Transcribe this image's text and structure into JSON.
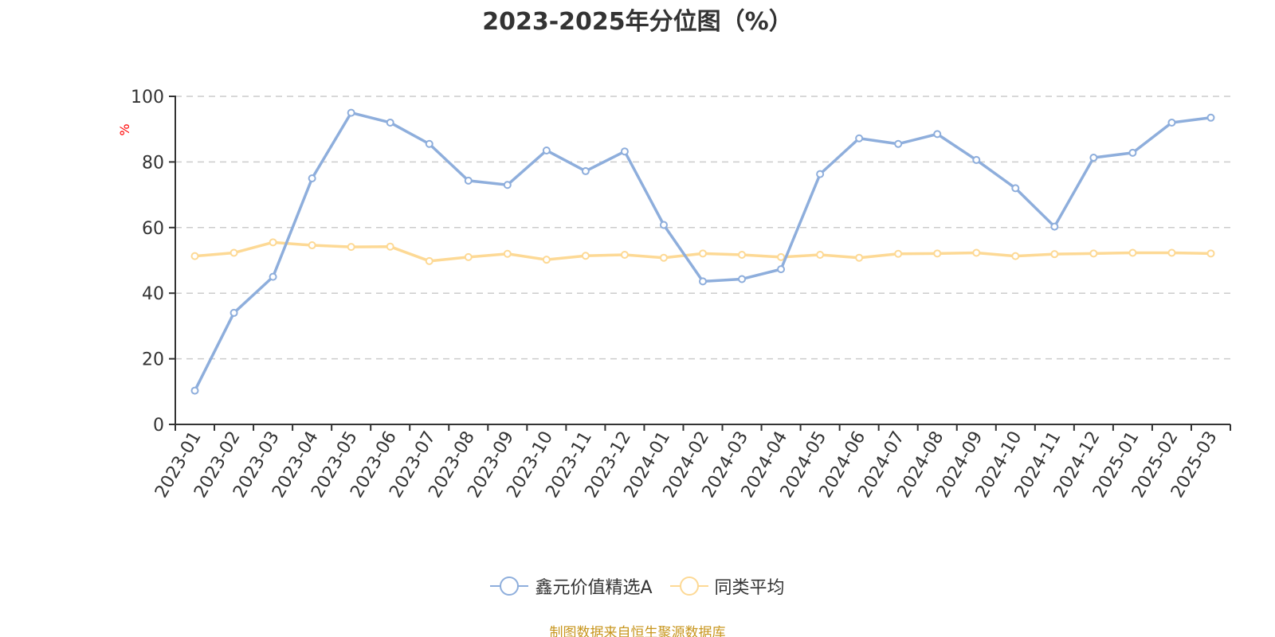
{
  "chart_data": {
    "type": "line",
    "title": "2023-2025年分位图（%）",
    "ylabel": "%",
    "ylim": [
      0,
      100
    ],
    "yticks": [
      0,
      20,
      40,
      60,
      80,
      100
    ],
    "grid": true,
    "legend_position": "bottom-center",
    "categories": [
      "2023-01",
      "2023-02",
      "2023-03",
      "2023-04",
      "2023-05",
      "2023-06",
      "2023-07",
      "2023-08",
      "2023-09",
      "2023-10",
      "2023-11",
      "2023-12",
      "2024-01",
      "2024-02",
      "2024-03",
      "2024-04",
      "2024-05",
      "2024-06",
      "2024-07",
      "2024-08",
      "2024-09",
      "2024-10",
      "2024-11",
      "2024-12",
      "2025-01",
      "2025-02",
      "2025-03"
    ],
    "series": [
      {
        "name": "鑫元价值精选A",
        "color": "#8eaedc",
        "values": [
          10.3,
          34,
          45,
          75,
          95,
          92,
          85.5,
          74.3,
          73,
          83.5,
          77.2,
          83.2,
          60.8,
          43.6,
          44.3,
          47.3,
          76.3,
          87.2,
          85.5,
          88.5,
          80.6,
          72,
          60.3,
          81.3,
          82.8,
          92,
          93.5
        ]
      },
      {
        "name": "同类平均",
        "color": "#fdd995",
        "values": [
          51.3,
          52.3,
          55.5,
          54.6,
          54.1,
          54.2,
          49.8,
          51,
          52,
          50.2,
          51.4,
          51.7,
          50.8,
          52.1,
          51.7,
          51,
          51.7,
          50.8,
          52,
          52.1,
          52.3,
          51.3,
          51.9,
          52.1,
          52.3,
          52.3,
          52.1
        ]
      }
    ]
  },
  "source_note": "制图数据来自恒生聚源数据库"
}
